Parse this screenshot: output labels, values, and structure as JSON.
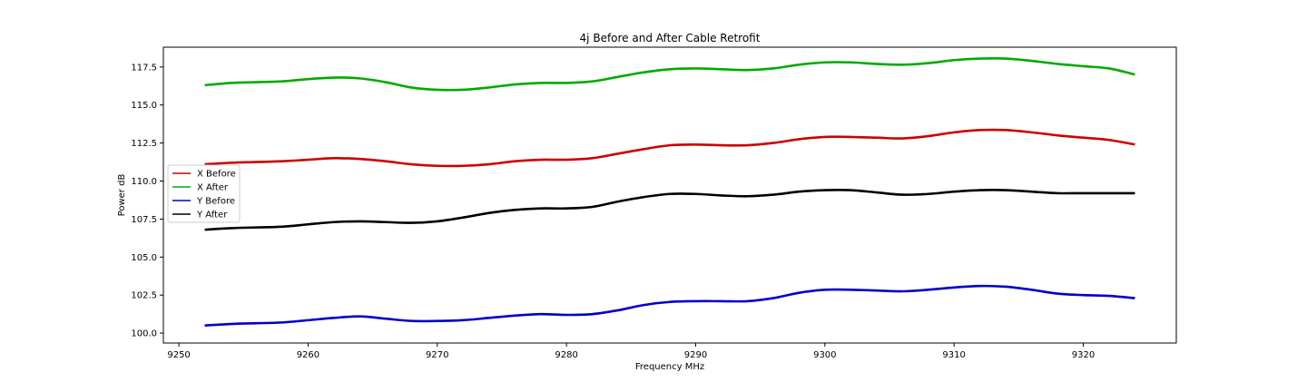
{
  "chart_data": {
    "type": "line",
    "title": "4j Before and After Cable Retrofit",
    "xlabel": "Frequency MHz",
    "ylabel": "Power dB",
    "xlim": [
      9248.8,
      9327.2
    ],
    "ylim": [
      99.35,
      118.8
    ],
    "xticks": [
      9250,
      9260,
      9270,
      9280,
      9290,
      9300,
      9310,
      9320
    ],
    "yticks": [
      100.0,
      102.5,
      105.0,
      107.5,
      110.0,
      112.5,
      115.0,
      117.5
    ],
    "legend_position": "center-left",
    "x": [
      9252,
      9254,
      9256,
      9258,
      9260,
      9262,
      9264,
      9266,
      9268,
      9270,
      9272,
      9274,
      9276,
      9278,
      9280,
      9282,
      9284,
      9286,
      9288,
      9290,
      9292,
      9294,
      9296,
      9298,
      9300,
      9302,
      9304,
      9306,
      9308,
      9310,
      9312,
      9314,
      9316,
      9318,
      9320,
      9322,
      9324
    ],
    "series": [
      {
        "name": "X Before",
        "color": "#cc0000",
        "values": [
          111.1,
          111.2,
          111.25,
          111.3,
          111.4,
          111.5,
          111.45,
          111.3,
          111.1,
          111.0,
          111.0,
          111.1,
          111.3,
          111.4,
          111.4,
          111.5,
          111.8,
          112.1,
          112.35,
          112.4,
          112.35,
          112.35,
          112.5,
          112.75,
          112.9,
          112.9,
          112.85,
          112.8,
          112.95,
          113.2,
          113.35,
          113.35,
          113.2,
          113.0,
          112.85,
          112.7,
          112.4
        ]
      },
      {
        "name": "X After",
        "color": "#00aa00",
        "values": [
          116.3,
          116.45,
          116.5,
          116.55,
          116.7,
          116.8,
          116.75,
          116.5,
          116.15,
          116.0,
          116.0,
          116.15,
          116.35,
          116.45,
          116.45,
          116.55,
          116.85,
          117.15,
          117.35,
          117.4,
          117.35,
          117.3,
          117.4,
          117.65,
          117.8,
          117.8,
          117.7,
          117.65,
          117.75,
          117.95,
          118.05,
          118.05,
          117.9,
          117.7,
          117.55,
          117.4,
          117.0
        ]
      },
      {
        "name": "Y Before",
        "color": "#0000cc",
        "values": [
          100.5,
          100.6,
          100.65,
          100.7,
          100.85,
          101.0,
          101.1,
          100.95,
          100.8,
          100.8,
          100.85,
          101.0,
          101.15,
          101.25,
          101.2,
          101.25,
          101.5,
          101.85,
          102.05,
          102.1,
          102.1,
          102.1,
          102.3,
          102.65,
          102.85,
          102.85,
          102.8,
          102.75,
          102.85,
          103.0,
          103.1,
          103.05,
          102.85,
          102.6,
          102.5,
          102.45,
          102.3
        ]
      },
      {
        "name": "Y After",
        "color": "#000000",
        "values": [
          106.8,
          106.9,
          106.95,
          107.0,
          107.15,
          107.3,
          107.35,
          107.3,
          107.25,
          107.35,
          107.6,
          107.9,
          108.1,
          108.2,
          108.2,
          108.3,
          108.65,
          108.95,
          109.15,
          109.15,
          109.05,
          109.0,
          109.1,
          109.3,
          109.4,
          109.4,
          109.25,
          109.1,
          109.15,
          109.3,
          109.4,
          109.4,
          109.3,
          109.2,
          109.2,
          109.2,
          109.2
        ]
      }
    ]
  }
}
